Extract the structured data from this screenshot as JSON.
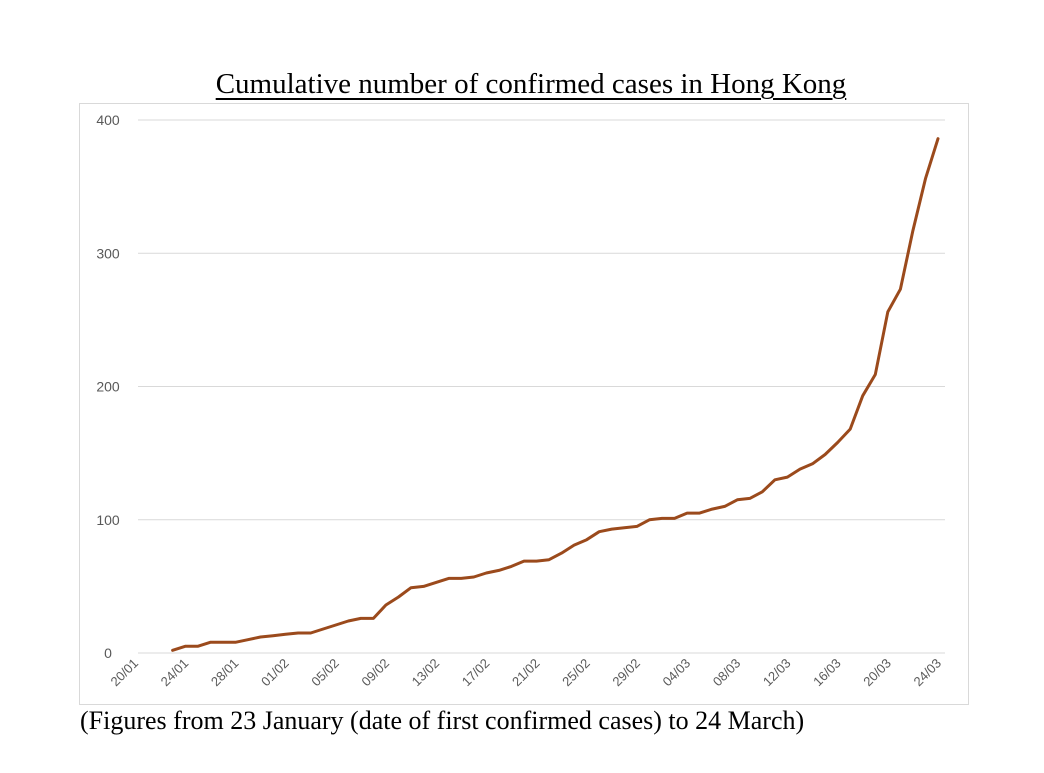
{
  "title": "Cumulative number of confirmed cases in Hong Kong",
  "footnote": "(Figures from 23 January (date of first confirmed cases) to 24 March)",
  "colors": {
    "line": "#9b4a1c",
    "grid": "#d9d9d9",
    "tick_text": "#595959"
  },
  "chart_data": {
    "type": "line",
    "title": "Cumulative number of confirmed cases in Hong Kong",
    "xlabel": "",
    "ylabel": "",
    "ylim": [
      0,
      400
    ],
    "yticks": [
      0,
      100,
      200,
      300,
      400
    ],
    "xlim": [
      "20/01",
      "24/03"
    ],
    "x_ticks": [
      "20/01",
      "24/01",
      "28/01",
      "01/02",
      "05/02",
      "09/02",
      "13/02",
      "17/02",
      "21/02",
      "25/02",
      "29/02",
      "04/03",
      "08/03",
      "12/03",
      "16/03",
      "20/03",
      "24/03"
    ],
    "grid": true,
    "legend": "none",
    "series": [
      {
        "x": [
          "23/01",
          "24/01",
          "25/01",
          "26/01",
          "27/01",
          "28/01",
          "29/01",
          "30/01",
          "31/01",
          "01/02",
          "02/02",
          "03/02",
          "04/02",
          "05/02",
          "06/02",
          "07/02",
          "08/02",
          "09/02",
          "10/02",
          "11/02",
          "12/02",
          "13/02",
          "14/02",
          "15/02",
          "16/02",
          "17/02",
          "18/02",
          "19/02",
          "20/02",
          "21/02",
          "22/02",
          "23/02",
          "24/02",
          "25/02",
          "26/02",
          "27/02",
          "28/02",
          "29/02",
          "01/03",
          "02/03",
          "03/03",
          "04/03",
          "05/03",
          "06/03",
          "07/03",
          "08/03",
          "09/03",
          "10/03",
          "11/03",
          "12/03",
          "13/03",
          "14/03",
          "15/03",
          "16/03",
          "17/03",
          "18/03",
          "19/03",
          "20/03",
          "21/03",
          "22/03",
          "23/03",
          "24/03"
        ],
        "values": [
          2,
          5,
          5,
          8,
          8,
          8,
          10,
          12,
          13,
          14,
          15,
          15,
          18,
          21,
          24,
          26,
          26,
          36,
          42,
          49,
          50,
          53,
          56,
          56,
          57,
          60,
          62,
          65,
          69,
          69,
          70,
          75,
          81,
          85,
          91,
          93,
          94,
          95,
          100,
          101,
          101,
          105,
          105,
          108,
          110,
          115,
          116,
          121,
          130,
          132,
          138,
          142,
          149,
          158,
          168,
          193,
          209,
          256,
          273,
          317,
          356,
          386
        ]
      }
    ]
  }
}
